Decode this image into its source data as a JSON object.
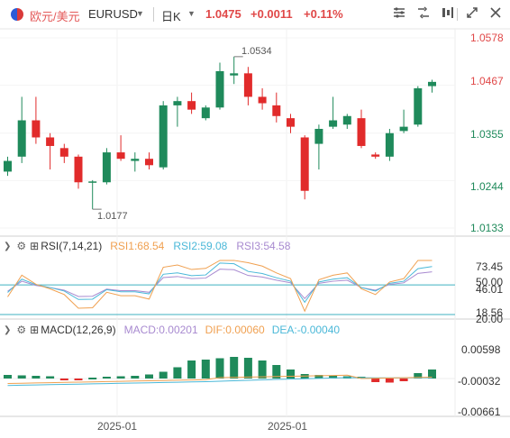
{
  "toolbar": {
    "pair_label": "欧元/美元",
    "symbol": "EURUSD",
    "period": "日K",
    "last_price": "1.0475",
    "change": "+0.0011",
    "change_pct": "+0.11%",
    "icons": [
      "indicator-icon",
      "compare-icon",
      "draw-icon",
      "fullscreen-icon",
      "close-icon"
    ]
  },
  "main_chart": {
    "high_label": "1.0534",
    "low_label": "1.0177",
    "y_ticks": [
      "1.0578",
      "1.0467",
      "1.0355",
      "1.0244",
      "1.0133"
    ],
    "y_tick_values": [
      1.0578,
      1.0467,
      1.0355,
      1.0244,
      1.0133
    ],
    "last_price_color": "#e04848"
  },
  "rsi": {
    "title": "RSI(7,14,21)",
    "rsi1": "RSI1:68.54",
    "rsi2": "RSI2:59.08",
    "rsi3": "RSI3:54.58",
    "ticks": [
      "73.45",
      "50.00",
      "46.01",
      "18.56",
      "20.00"
    ]
  },
  "macd": {
    "title": "MACD(12,26,9)",
    "macd": "MACD:0.00201",
    "dif": "DIF:0.00060",
    "dea": "DEA:-0.00040",
    "ticks": [
      "0.00598",
      "-0.00032",
      "-0.00661"
    ]
  },
  "x_axis": {
    "labels": [
      "2025-01",
      "2025-01"
    ]
  },
  "colors": {
    "up": "#1f8a5b",
    "down": "#e12b2b",
    "rsi1": "#f0a050",
    "rsi2": "#4ab8d8",
    "rsi3": "#a88ad0",
    "dif": "#f0a050",
    "dea": "#4ab8d8"
  },
  "chart_data": {
    "type": "candlestick",
    "candles": [
      {
        "o": 1.0265,
        "c": 1.029,
        "h": 1.03,
        "l": 1.0255
      },
      {
        "o": 1.03,
        "c": 1.0385,
        "h": 1.044,
        "l": 1.0285
      },
      {
        "o": 1.0385,
        "c": 1.0345,
        "h": 1.044,
        "l": 1.033
      },
      {
        "o": 1.0345,
        "c": 1.0325,
        "h": 1.0355,
        "l": 1.027
      },
      {
        "o": 1.032,
        "c": 1.03,
        "h": 1.033,
        "l": 1.0285
      },
      {
        "o": 1.03,
        "c": 1.024,
        "h": 1.0305,
        "l": 1.0225
      },
      {
        "o": 1.024,
        "c": 1.0242,
        "h": 1.0245,
        "l": 1.0177
      },
      {
        "o": 1.024,
        "c": 1.031,
        "h": 1.032,
        "l": 1.0235
      },
      {
        "o": 1.031,
        "c": 1.0295,
        "h": 1.035,
        "l": 1.029
      },
      {
        "o": 1.029,
        "c": 1.0295,
        "h": 1.031,
        "l": 1.0265
      },
      {
        "o": 1.0295,
        "c": 1.028,
        "h": 1.031,
        "l": 1.027
      },
      {
        "o": 1.0275,
        "c": 1.042,
        "h": 1.043,
        "l": 1.027
      },
      {
        "o": 1.042,
        "c": 1.043,
        "h": 1.044,
        "l": 1.037
      },
      {
        "o": 1.043,
        "c": 1.041,
        "h": 1.045,
        "l": 1.04
      },
      {
        "o": 1.039,
        "c": 1.0415,
        "h": 1.042,
        "l": 1.0385
      },
      {
        "o": 1.0415,
        "c": 1.05,
        "h": 1.052,
        "l": 1.041
      },
      {
        "o": 1.049,
        "c": 1.0495,
        "h": 1.0534,
        "l": 1.047
      },
      {
        "o": 1.0495,
        "c": 1.044,
        "h": 1.051,
        "l": 1.042
      },
      {
        "o": 1.044,
        "c": 1.0425,
        "h": 1.046,
        "l": 1.041
      },
      {
        "o": 1.042,
        "c": 1.0395,
        "h": 1.045,
        "l": 1.038
      },
      {
        "o": 1.039,
        "c": 1.037,
        "h": 1.04,
        "l": 1.0355
      },
      {
        "o": 1.0345,
        "c": 1.022,
        "h": 1.035,
        "l": 1.02
      },
      {
        "o": 1.033,
        "c": 1.0365,
        "h": 1.0375,
        "l": 1.027
      },
      {
        "o": 1.037,
        "c": 1.0385,
        "h": 1.044,
        "l": 1.0365
      },
      {
        "o": 1.0375,
        "c": 1.0395,
        "h": 1.04,
        "l": 1.0365
      },
      {
        "o": 1.039,
        "c": 1.0325,
        "h": 1.041,
        "l": 1.032
      },
      {
        "o": 1.0305,
        "c": 1.03,
        "h": 1.031,
        "l": 1.0295
      },
      {
        "o": 1.03,
        "c": 1.0355,
        "h": 1.0365,
        "l": 1.029
      },
      {
        "o": 1.036,
        "c": 1.037,
        "h": 1.041,
        "l": 1.0355
      },
      {
        "o": 1.0375,
        "c": 1.046,
        "h": 1.0465,
        "l": 1.037
      },
      {
        "o": 1.0465,
        "c": 1.0475,
        "h": 1.048,
        "l": 1.045
      }
    ],
    "macd_hist": [
      0.0008,
      0.0007,
      0.0006,
      0.0005,
      -0.0003,
      -0.0004,
      0.0002,
      0.0004,
      0.0005,
      0.0006,
      0.0009,
      0.0015,
      0.0025,
      0.004,
      0.0042,
      0.0045,
      0.0048,
      0.0046,
      0.004,
      0.003,
      0.002,
      0.001,
      0.0008,
      0.0006,
      0.0005,
      0.0004,
      -0.0008,
      -0.0009,
      -0.0006,
      0.0012,
      0.002
    ]
  }
}
